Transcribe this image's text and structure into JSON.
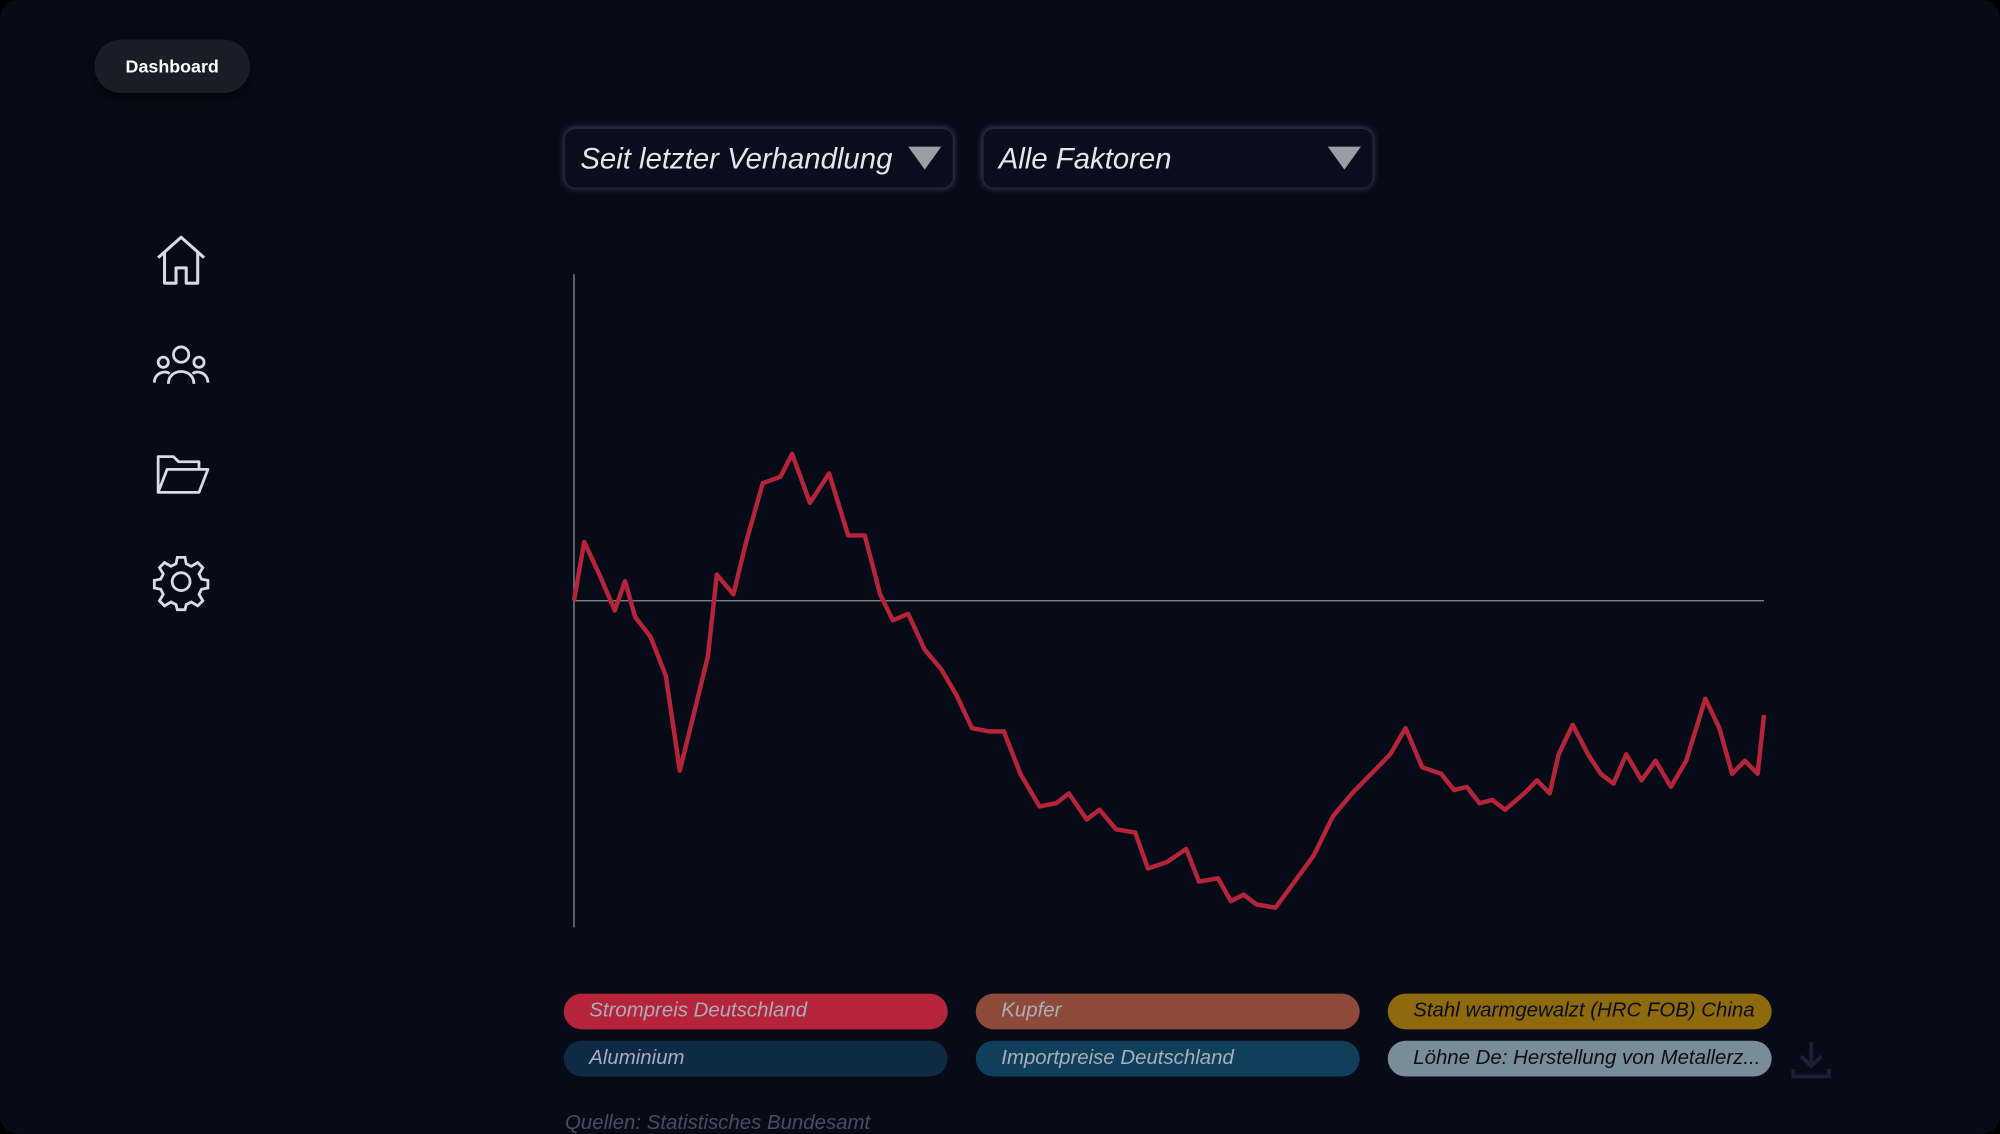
{
  "nav": {
    "dashboard": "Dashboard"
  },
  "filters": {
    "period": "Seit letzter Verhandlung",
    "factors": "Alle Faktoren"
  },
  "source": "Quellen: Statistisches Bundesamt",
  "chart_data": {
    "type": "line",
    "xlim": [
      0,
      933
    ],
    "ylim": [
      -100,
      100
    ],
    "x": [
      0,
      8,
      20,
      32,
      40,
      48,
      60,
      72,
      83,
      95,
      105,
      112,
      125,
      135,
      148,
      162,
      171,
      185,
      200,
      215,
      228,
      240,
      250,
      262,
      275,
      288,
      300,
      312,
      325,
      337,
      350,
      365,
      378,
      388,
      402,
      412,
      425,
      440,
      450,
      465,
      480,
      490,
      505,
      515,
      525,
      535,
      550,
      565,
      580,
      595,
      610,
      625,
      640,
      652,
      665,
      680,
      690,
      700,
      710,
      720,
      730,
      745,
      755,
      765,
      772,
      783,
      795,
      805,
      815,
      825,
      837,
      848,
      860,
      872,
      887,
      898,
      908,
      918,
      928,
      933
    ],
    "series": [
      {
        "name": "Strompreis Deutschland",
        "color": "#b5243a",
        "values": [
          0,
          18,
          8,
          -3,
          6,
          -5,
          -11,
          -23,
          -52,
          -33,
          -17,
          8,
          2,
          18,
          36,
          38,
          45,
          30,
          39,
          20,
          20,
          2,
          -6,
          -4,
          -15,
          -21,
          -29,
          -39,
          -40,
          -40,
          -53,
          -63,
          -62,
          -59,
          -67,
          -64,
          -70,
          -71,
          -82,
          -80,
          -76,
          -86,
          -85,
          -92,
          -90,
          -93,
          -94,
          -86,
          -78,
          -66,
          -59,
          -53,
          -47,
          -39,
          -51,
          -53,
          -58,
          -57,
          -62,
          -61,
          -64,
          -59,
          -55,
          -59,
          -47,
          -38,
          -47,
          -53,
          -56,
          -47,
          -55,
          -49,
          -57,
          -49,
          -30,
          -39,
          -53,
          -49,
          -53,
          -35
        ]
      },
      {
        "name": "Kupfer",
        "color": "#8e4a39"
      },
      {
        "name": "Stahl warmgewalzt (HRC FOB) China",
        "color": "#8f6a0c"
      },
      {
        "name": "Aluminium",
        "color": "#0f2a45"
      },
      {
        "name": "Importpreise Deutschland",
        "color": "#0f3f5a"
      },
      {
        "name": "Löhne De: Herstellung von Metallerz...",
        "color": "#7a8d96"
      }
    ]
  }
}
